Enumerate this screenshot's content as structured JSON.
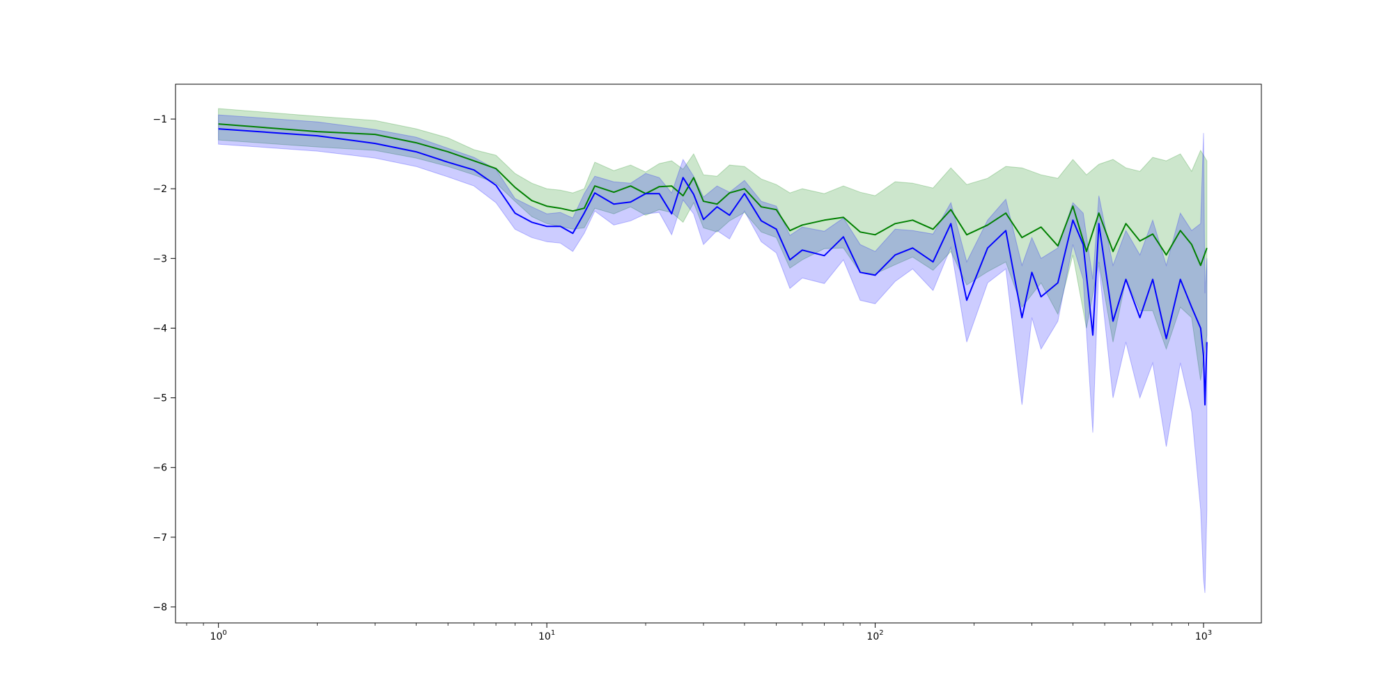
{
  "chart_data": {
    "type": "line",
    "title": "",
    "xlabel": "",
    "ylabel": "",
    "x_scale": "log",
    "xlim": [
      0.74,
      1500
    ],
    "ylim": [
      -8.23,
      -0.5
    ],
    "grid": false,
    "x_ticks": [
      {
        "value": 1,
        "base": "10",
        "exp": "0"
      },
      {
        "value": 10,
        "base": "10",
        "exp": "1"
      },
      {
        "value": 100,
        "base": "10",
        "exp": "2"
      },
      {
        "value": 1000,
        "base": "10",
        "exp": "3"
      }
    ],
    "y_ticks": [
      {
        "value": -1,
        "label": "−1"
      },
      {
        "value": -2,
        "label": "−2"
      },
      {
        "value": -3,
        "label": "−3"
      },
      {
        "value": -4,
        "label": "−4"
      },
      {
        "value": -5,
        "label": "−5"
      },
      {
        "value": -6,
        "label": "−6"
      },
      {
        "value": -7,
        "label": "−7"
      },
      {
        "value": -8,
        "label": "−8"
      }
    ],
    "series": [
      {
        "color": "#008000",
        "band_alpha": 0.2,
        "x": [
          1,
          2,
          3,
          4,
          5,
          6,
          7,
          8,
          9,
          10,
          11,
          12,
          13,
          14,
          16,
          18,
          20,
          22,
          24,
          26,
          28,
          30,
          33,
          36,
          40,
          45,
          50,
          55,
          60,
          70,
          80,
          90,
          100,
          115,
          130,
          150,
          170,
          190,
          220,
          250,
          280,
          320,
          360,
          400,
          440,
          480,
          530,
          580,
          640,
          700,
          770,
          850,
          920,
          980,
          1024
        ],
        "mean": [
          -1.07,
          -1.18,
          -1.22,
          -1.34,
          -1.47,
          -1.6,
          -1.71,
          -1.98,
          -2.17,
          -2.25,
          -2.28,
          -2.32,
          -2.28,
          -1.96,
          -2.05,
          -1.96,
          -2.07,
          -1.97,
          -1.96,
          -2.1,
          -1.84,
          -2.18,
          -2.22,
          -2.06,
          -2.0,
          -2.26,
          -2.3,
          -2.6,
          -2.52,
          -2.45,
          -2.41,
          -2.62,
          -2.66,
          -2.5,
          -2.45,
          -2.58,
          -2.3,
          -2.66,
          -2.52,
          -2.35,
          -2.7,
          -2.55,
          -2.82,
          -2.25,
          -2.9,
          -2.35,
          -2.9,
          -2.5,
          -2.75,
          -2.65,
          -2.95,
          -2.6,
          -2.8,
          -3.1,
          -2.85
        ],
        "upper": [
          -0.85,
          -0.96,
          -1.02,
          -1.14,
          -1.27,
          -1.44,
          -1.52,
          -1.78,
          -1.92,
          -2.0,
          -2.02,
          -2.06,
          -2.0,
          -1.62,
          -1.74,
          -1.66,
          -1.76,
          -1.64,
          -1.6,
          -1.72,
          -1.5,
          -1.8,
          -1.82,
          -1.66,
          -1.68,
          -1.86,
          -1.94,
          -2.06,
          -2.0,
          -2.07,
          -1.96,
          -2.05,
          -2.1,
          -1.9,
          -1.92,
          -1.99,
          -1.7,
          -1.94,
          -1.85,
          -1.68,
          -1.7,
          -1.8,
          -1.85,
          -1.58,
          -1.8,
          -1.65,
          -1.58,
          -1.7,
          -1.75,
          -1.55,
          -1.6,
          -1.5,
          -1.75,
          -1.45,
          -1.6
        ],
        "lower": [
          -1.3,
          -1.4,
          -1.45,
          -1.56,
          -1.68,
          -1.8,
          -1.92,
          -2.18,
          -2.4,
          -2.5,
          -2.54,
          -2.58,
          -2.56,
          -2.28,
          -2.36,
          -2.26,
          -2.38,
          -2.3,
          -2.34,
          -2.48,
          -2.2,
          -2.56,
          -2.62,
          -2.46,
          -2.34,
          -2.62,
          -2.7,
          -3.14,
          -3.02,
          -2.86,
          -2.85,
          -3.2,
          -3.22,
          -3.09,
          -2.98,
          -3.17,
          -2.9,
          -3.38,
          -3.19,
          -3.05,
          -3.7,
          -3.35,
          -3.8,
          -2.95,
          -4.0,
          -3.05,
          -4.2,
          -3.3,
          -3.75,
          -3.75,
          -4.3,
          -3.7,
          -3.85,
          -4.75,
          -4.1
        ]
      },
      {
        "color": "#0000ff",
        "band_alpha": 0.2,
        "x": [
          1,
          2,
          3,
          4,
          5,
          6,
          7,
          8,
          9,
          10,
          11,
          12,
          13,
          14,
          16,
          18,
          20,
          22,
          24,
          26,
          28,
          30,
          33,
          36,
          40,
          45,
          50,
          55,
          60,
          70,
          80,
          90,
          100,
          115,
          130,
          150,
          170,
          190,
          220,
          250,
          280,
          300,
          320,
          360,
          400,
          430,
          460,
          480,
          530,
          580,
          640,
          700,
          770,
          850,
          920,
          980,
          1000,
          1010,
          1024
        ],
        "mean": [
          -1.14,
          -1.24,
          -1.35,
          -1.47,
          -1.62,
          -1.73,
          -1.95,
          -2.35,
          -2.48,
          -2.54,
          -2.54,
          -2.64,
          -2.35,
          -2.06,
          -2.22,
          -2.19,
          -2.07,
          -2.07,
          -2.36,
          -1.84,
          -2.08,
          -2.44,
          -2.26,
          -2.38,
          -2.07,
          -2.46,
          -2.58,
          -3.02,
          -2.88,
          -2.96,
          -2.69,
          -3.2,
          -3.24,
          -2.95,
          -2.85,
          -3.05,
          -2.5,
          -3.6,
          -2.85,
          -2.6,
          -3.85,
          -3.2,
          -3.55,
          -3.35,
          -2.45,
          -2.8,
          -4.1,
          -2.5,
          -3.9,
          -3.3,
          -3.85,
          -3.3,
          -4.15,
          -3.3,
          -3.7,
          -4.0,
          -4.4,
          -5.1,
          -4.2
        ],
        "upper": [
          -0.94,
          -1.04,
          -1.15,
          -1.26,
          -1.42,
          -1.55,
          -1.72,
          -2.14,
          -2.26,
          -2.36,
          -2.34,
          -2.42,
          -2.07,
          -1.82,
          -1.9,
          -1.92,
          -1.78,
          -1.84,
          -2.06,
          -1.58,
          -1.82,
          -2.12,
          -1.96,
          -2.05,
          -1.88,
          -2.18,
          -2.25,
          -2.67,
          -2.55,
          -2.61,
          -2.42,
          -2.8,
          -2.9,
          -2.58,
          -2.6,
          -2.65,
          -2.2,
          -3.05,
          -2.45,
          -2.15,
          -3.1,
          -2.7,
          -3.0,
          -2.85,
          -2.2,
          -2.35,
          -3.3,
          -2.1,
          -3.1,
          -2.6,
          -2.95,
          -2.45,
          -3.1,
          -2.35,
          -2.6,
          -2.5,
          -1.2,
          -3.5,
          -3.0
        ],
        "lower": [
          -1.36,
          -1.46,
          -1.56,
          -1.68,
          -1.83,
          -1.96,
          -2.2,
          -2.58,
          -2.7,
          -2.76,
          -2.78,
          -2.9,
          -2.64,
          -2.32,
          -2.52,
          -2.46,
          -2.36,
          -2.34,
          -2.66,
          -2.16,
          -2.36,
          -2.8,
          -2.6,
          -2.72,
          -2.32,
          -2.76,
          -2.92,
          -3.43,
          -3.28,
          -3.36,
          -3.02,
          -3.6,
          -3.65,
          -3.33,
          -3.15,
          -3.46,
          -2.84,
          -4.2,
          -3.35,
          -3.15,
          -5.1,
          -3.85,
          -4.3,
          -3.9,
          -2.8,
          -3.3,
          -5.5,
          -3.1,
          -5.0,
          -4.2,
          -5.0,
          -4.5,
          -5.7,
          -4.5,
          -5.2,
          -6.6,
          -7.6,
          -7.8,
          -6.6
        ]
      }
    ]
  }
}
